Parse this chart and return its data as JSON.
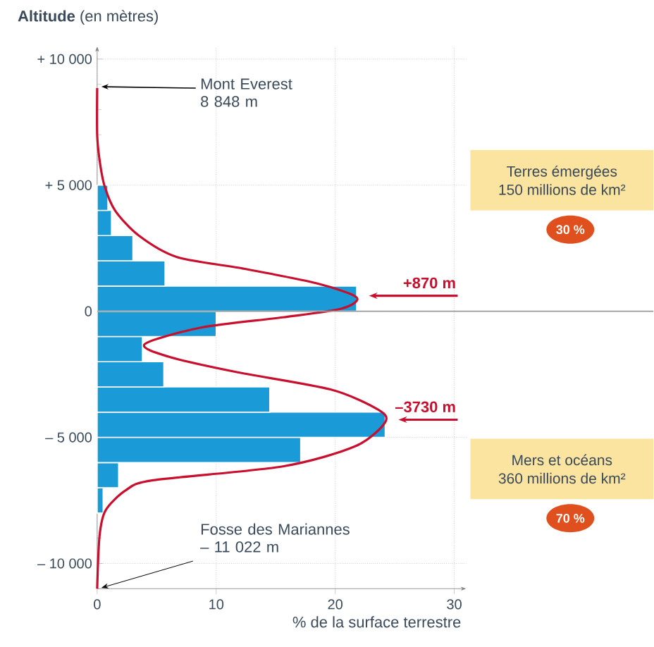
{
  "chart_data": {
    "type": "histogram",
    "orientation": "horizontal",
    "xlabel": "% de la surface terrestre",
    "ylabel": "**Altitude** (en mètres)",
    "xlim": [
      0,
      31
    ],
    "ylim": [
      -11000,
      10500
    ],
    "xticks": [
      0,
      10,
      20,
      30
    ],
    "yticks": [
      {
        "value": 10000,
        "label": "+ 10 000"
      },
      {
        "value": 5000,
        "label": "+ 5 000"
      },
      0,
      {
        "value": -5000,
        "label": "– 5 000"
      },
      {
        "value": -10000,
        "label": "– 10 000"
      }
    ],
    "grid": true,
    "ref_lines": [
      {
        "axis": "y",
        "value": 0,
        "color": "#9a9a9a"
      }
    ],
    "series": [
      {
        "color": "#1a9ad6",
        "bins": [
          -8000,
          -7000,
          -6000,
          -5000,
          -4000,
          -3000,
          -2000,
          -1000,
          0,
          1000,
          2000,
          3000,
          4000,
          5000
        ],
        "values": [
          0.5,
          1.8,
          17.1,
          24.2,
          14.5,
          5.6,
          3.8,
          10.0,
          21.8,
          5.7,
          3.0,
          1.2,
          0.9
        ]
      },
      {
        "type": "line",
        "color": "#c8102e",
        "values": [
          0,
          0,
          0.2,
          0.6,
          1.5,
          3.5,
          6.7,
          12.2,
          18.5,
          21.8,
          20.5,
          15.6,
          8.8,
          4.0,
          6.0,
          11.6,
          19.6,
          23.6,
          24.2,
          21.7,
          15.6,
          4.7,
          2.4,
          0.7,
          0.2,
          0
        ],
        "x": [
          8848,
          7000,
          6000,
          5000,
          4000,
          3000,
          2150,
          1700,
          1100,
          550,
          100,
          -240,
          -640,
          -1300,
          -1800,
          -2400,
          -3100,
          -3900,
          -4400,
          -5350,
          -6150,
          -6700,
          -7100,
          -7900,
          -8900,
          -11000
        ]
      }
    ],
    "annotations": [
      {
        "text": "Mont Everest 8 848 m",
        "x": 0,
        "y": 8848
      },
      {
        "text": "Fosse des Mariannes – 11 022 m",
        "x": 0,
        "y": -11022
      },
      "+870 m",
      "–3730 m",
      "Terres émergées",
      "150 millions de km²",
      "30 %",
      "Mers et océans",
      "360 millions de km²",
      "70 %"
    ]
  }
}
